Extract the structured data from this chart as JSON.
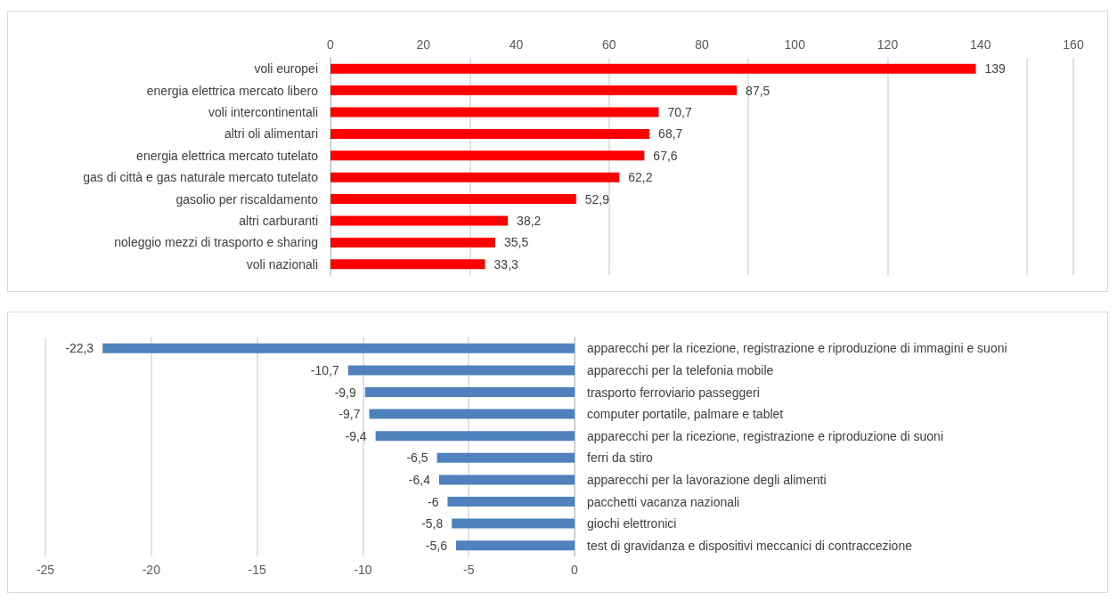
{
  "chart_data": [
    {
      "type": "bar",
      "orientation": "horizontal",
      "categories": [
        "voli europei",
        "energia elettrica mercato libero",
        "voli intercontinentali",
        "altri oli alimentari",
        "energia elettrica mercato tutelato",
        "gas di città e gas naturale mercato tutelato",
        "gasolio per riscaldamento",
        "altri carburanti",
        "noleggio mezzi di trasporto e sharing",
        "voli nazionali"
      ],
      "values": [
        139,
        87.5,
        70.7,
        68.7,
        67.6,
        62.2,
        52.9,
        38.2,
        35.5,
        33.3
      ],
      "value_labels": [
        "139",
        "87,5",
        "70,7",
        "68,7",
        "67,6",
        "62,2",
        "52,9",
        "38,2",
        "35,5",
        "33,3"
      ],
      "color": "#ff0000",
      "xlim": [
        0,
        160
      ],
      "xticks": [
        0,
        20,
        40,
        60,
        80,
        100,
        120,
        140,
        160
      ],
      "grid": "x"
    },
    {
      "type": "bar",
      "orientation": "horizontal",
      "categories": [
        "apparecchi per la ricezione, registrazione e riproduzione di immagini e suoni",
        "apparecchi per la telefonia mobile",
        "trasporto ferroviario passeggeri",
        "computer portatile, palmare e tablet",
        "apparecchi per la ricezione, registrazione e riproduzione di suoni",
        "ferri da stiro",
        "apparecchi per la lavorazione degli alimenti",
        "pacchetti vacanza nazionali",
        "giochi elettronici",
        "test di gravidanza e dispositivi meccanici di contraccezione"
      ],
      "values": [
        -22.3,
        -10.7,
        -9.9,
        -9.7,
        -9.4,
        -6.5,
        -6.4,
        -6,
        -5.8,
        -5.6
      ],
      "value_labels": [
        "-22,3",
        "-10,7",
        "-9,9",
        "-9,7",
        "-9,4",
        "-6,5",
        "-6,4",
        "-6",
        "-5,8",
        "-5,6"
      ],
      "color": "#4f81bd",
      "xlim": [
        -25,
        0
      ],
      "xticks": [
        -25,
        -20,
        -15,
        -10,
        -5,
        0
      ],
      "grid": "x"
    }
  ]
}
